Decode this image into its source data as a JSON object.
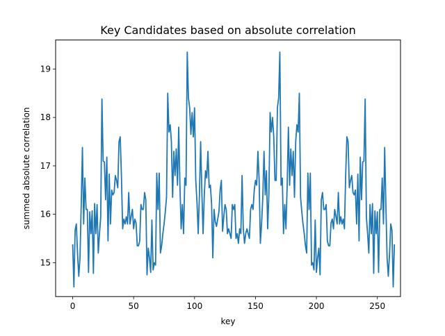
{
  "chart_data": {
    "type": "line",
    "title": "Key Candidates based on absolute correlation",
    "xlabel": "key",
    "ylabel": "summed absolute correlation",
    "xlim": [
      -14,
      269
    ],
    "ylim": [
      14.3,
      19.6
    ],
    "xticks": [
      0,
      50,
      100,
      150,
      200,
      250
    ],
    "yticks": [
      15,
      16,
      17,
      18,
      19
    ],
    "grid": false,
    "series_color": "#1f77b4",
    "series": [
      {
        "x_start": 0,
        "x_step": 1,
        "values": [
          15.38,
          14.5,
          15.67,
          15.8,
          15.18,
          14.72,
          15.1,
          16.2,
          17.38,
          15.8,
          16.75,
          16.1,
          16.1,
          14.8,
          16.05,
          15.6,
          16.07,
          14.78,
          16.22,
          15.6,
          16.2,
          15.2,
          15.6,
          15.95,
          18.38,
          17.1,
          17.08,
          16.3,
          17.18,
          15.45,
          16.83,
          15.8,
          16.5,
          16.4,
          16.45,
          16.8,
          16.7,
          16.55,
          17.5,
          17.6,
          16.8,
          15.7,
          15.9,
          15.8,
          15.95,
          15.8,
          16.45,
          15.8,
          15.96,
          16.1,
          15.7,
          15.9,
          15.82,
          15.35,
          15.35,
          15.45,
          16.2,
          16.1,
          16.1,
          16.45,
          16.3,
          14.75,
          15.3,
          15.1,
          14.8,
          15.88,
          14.85,
          15.0,
          14.95,
          16.85,
          16.1,
          16.85,
          15.2,
          15.35,
          15.6,
          15.8,
          16.05,
          16.35,
          18.5,
          17.7,
          17.85,
          17.5,
          16.35,
          17.3,
          16.8,
          17.35,
          16.6,
          17.8,
          16.6,
          15.7,
          16.2,
          15.6,
          16.75,
          16.6,
          19.35,
          18.4,
          18.2,
          17.65,
          18.1,
          17.6,
          18.2,
          16.7,
          16.25,
          15.6,
          16.4,
          17.5,
          16.45,
          15.6,
          16.4,
          16.9,
          16.75,
          17.3,
          16.55,
          16.6,
          16.2,
          15.1,
          16.1,
          15.85,
          15.75,
          15.9,
          16.05,
          16.5,
          16.7,
          15.65,
          15.95,
          16.2,
          16.1,
          15.6,
          15.7,
          15.6,
          15.5,
          16.2,
          16.1,
          16.2,
          15.5,
          15.6,
          15.4,
          15.7,
          15.6,
          16.8,
          15.7,
          15.4,
          15.6,
          15.7,
          15.6,
          15.5,
          16.1,
          16.2,
          16.1,
          16.5,
          16.7,
          16.6,
          17.3,
          16.7,
          15.4,
          15.8,
          16.35,
          17.3,
          16.4,
          16.9,
          15.7,
          16.4,
          18.1,
          17.7,
          18.0,
          17.6,
          16.7,
          16.7,
          18.2,
          18.4,
          19.35,
          16.6,
          16.75,
          15.6,
          16.2,
          15.7,
          16.6,
          17.8,
          16.6,
          17.35,
          16.8,
          17.3,
          16.35,
          17.5,
          17.85,
          17.7,
          18.5,
          16.35,
          16.05,
          15.8,
          15.6,
          15.35,
          15.2,
          16.85,
          16.1,
          16.85,
          14.95,
          15.0,
          14.85,
          15.88,
          14.8,
          15.1,
          15.3,
          14.75,
          16.3,
          16.45,
          16.1,
          16.1,
          16.2,
          15.45,
          15.35,
          15.35,
          15.82,
          15.9,
          15.7,
          16.1,
          15.96,
          15.8,
          16.45,
          15.8,
          15.95,
          15.8,
          15.9,
          15.7,
          16.8,
          17.6,
          17.5,
          16.55,
          16.7,
          16.8,
          16.45,
          16.4,
          16.5,
          15.8,
          16.83,
          15.45,
          17.18,
          16.3,
          17.08,
          17.1,
          18.38,
          15.95,
          15.6,
          15.2,
          16.2,
          15.6,
          16.22,
          14.78,
          16.07,
          15.6,
          16.05,
          14.8,
          16.1,
          16.1,
          16.75,
          15.8,
          17.38,
          16.2,
          15.1,
          14.72,
          15.18,
          15.8,
          15.67,
          14.5,
          15.38
        ]
      }
    ]
  }
}
